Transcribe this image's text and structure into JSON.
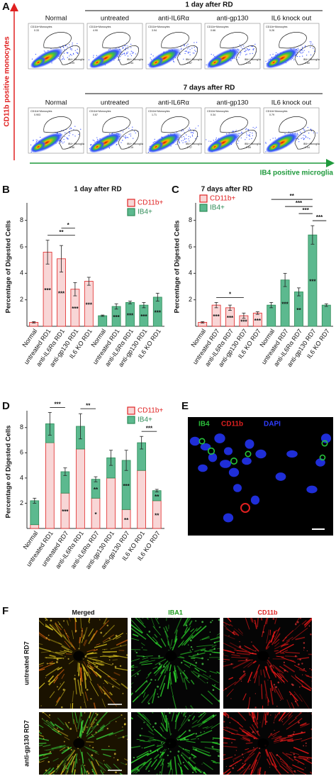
{
  "panel_a": {
    "letter": "A",
    "y_axis_label": "CD11b positive monocytes",
    "x_axis_label": "IB4 positive microglia",
    "gate_labels": [
      "CD11b+Monocytes",
      "IB4+ Microglia"
    ],
    "rows": [
      {
        "title": "1 day after RD",
        "labels": [
          "Normal",
          "untreated",
          "anti-IL6Rα",
          "anti-gp130",
          "IL6 knock out"
        ],
        "upper": [
          "0.33",
          "4.90",
          "3.94",
          "0.66",
          "5.26"
        ],
        "lower": [
          "1.29",
          "1.44",
          "1.67",
          "1.20",
          "1.60"
        ]
      },
      {
        "title": "7 days after RD",
        "labels": [
          "Normal",
          "untreated",
          "anti-IL6Rα",
          "anti-gp130",
          "IL6 knock out"
        ],
        "upper": [
          "0.903",
          "0.87",
          "1.71",
          "0.34",
          "0.79"
        ],
        "lower": [
          "0.66",
          "1.19",
          "2.17",
          "0.89",
          "1.04"
        ]
      }
    ]
  },
  "chart_data": [
    {
      "letter": "B",
      "type": "bar",
      "title": "1 day after RD",
      "ylabel": "Percentage of Digested Cells",
      "categories": [
        "Normal",
        "untreated RD1",
        "anti-IL6Rα RD1",
        "anti-gp130 RD1",
        "IL6 KO RD1",
        "Normal",
        "untreated RD1",
        "anti-IL6Rα RD1",
        "anti-gp130 RD1",
        "IL6 KO RD1"
      ],
      "series": [
        {
          "name": "CD11b+",
          "color": "#f8d6d6",
          "edge": "#e02424",
          "values": [
            0.3,
            5.6,
            5.1,
            2.8,
            3.4,
            null,
            null,
            null,
            null,
            null
          ],
          "errors": [
            0.05,
            0.9,
            1.0,
            0.5,
            0.3,
            null,
            null,
            null,
            null,
            null
          ],
          "labels": [
            null,
            "***",
            "***",
            "***",
            "***",
            null,
            null,
            null,
            null,
            null
          ]
        },
        {
          "name": "IB4+",
          "color": "#5cb98f",
          "edge": "#2e8b57",
          "values": [
            null,
            null,
            null,
            null,
            null,
            0.8,
            1.5,
            1.8,
            1.6,
            2.2
          ],
          "errors": [
            null,
            null,
            null,
            null,
            null,
            0.05,
            0.2,
            0.1,
            0.2,
            0.3
          ],
          "labels": [
            null,
            null,
            null,
            null,
            null,
            null,
            "***",
            "***",
            "***",
            "***"
          ]
        }
      ],
      "ylim": [
        0,
        9
      ],
      "yticks": [
        2,
        4,
        6,
        8
      ],
      "legend": "upper right",
      "brackets": [
        {
          "from": 1,
          "to": 3,
          "label": "**"
        },
        {
          "from": 2,
          "to": 3,
          "label": "*"
        }
      ]
    },
    {
      "letter": "C",
      "type": "bar",
      "title": "7 days after RD",
      "ylabel": "Percentage of Digested Cells",
      "categories": [
        "Normal",
        "untreated RD7",
        "anti-IL6Rα RD7",
        "anti-gp130 RD7",
        "IL6 KO RD7",
        "Normal",
        "untreated RD7",
        "anti-IL6Rα RD7",
        "anti-gp130 RD7",
        "IL6 KO RD7"
      ],
      "series": [
        {
          "name": "CD11b+",
          "color": "#f8d6d6",
          "edge": "#e02424",
          "values": [
            0.3,
            1.6,
            1.4,
            0.8,
            1.0,
            null,
            null,
            null,
            null,
            null
          ],
          "errors": [
            0.05,
            0.2,
            0.2,
            0.2,
            0.1,
            null,
            null,
            null,
            null,
            null
          ],
          "labels": [
            null,
            "***",
            "***",
            "***",
            "***",
            null,
            null,
            null,
            null,
            null
          ]
        },
        {
          "name": "IB4+",
          "color": "#5cb98f",
          "edge": "#2e8b57",
          "values": [
            null,
            null,
            null,
            null,
            null,
            1.6,
            3.5,
            2.6,
            6.9,
            1.6
          ],
          "errors": [
            null,
            null,
            null,
            null,
            null,
            0.2,
            0.5,
            0.3,
            0.7,
            0.1
          ],
          "labels": [
            null,
            null,
            null,
            null,
            null,
            null,
            "***",
            "**",
            "***",
            null
          ]
        }
      ],
      "ylim": [
        0,
        9
      ],
      "yticks": [
        2,
        4,
        6,
        8
      ],
      "legend": "upper left",
      "brackets": [
        {
          "from": 1,
          "to": 3,
          "label": "*"
        },
        {
          "from": 8,
          "to": 9,
          "label": "***"
        },
        {
          "from": 7,
          "to": 8,
          "label": "***"
        },
        {
          "from": 6,
          "to": 8,
          "label": "***"
        },
        {
          "from": 5,
          "to": 8,
          "label": "**"
        }
      ]
    },
    {
      "letter": "D",
      "type": "stacked_bar",
      "ylabel": "Percentage of Digested Cells",
      "categories": [
        "Normal",
        "untreated RD1",
        "untreated RD7",
        "anti-IL6Rα RD1",
        "anti-IL6Rα RD7",
        "anti-gp130 RD1",
        "anti-gp130 RD7",
        "IL6 KO RD1",
        "IL6 KO RD7"
      ],
      "series": [
        {
          "name": "CD11b+",
          "color": "#f8d6d6",
          "edge": "#e02424",
          "values": [
            0.3,
            6.8,
            2.8,
            6.3,
            2.4,
            4.0,
            1.5,
            4.6,
            2.2
          ],
          "labels": [
            null,
            null,
            "***",
            null,
            "*",
            null,
            "**",
            null,
            "**"
          ]
        },
        {
          "name": "IB4+",
          "color": "#5cb98f",
          "edge": "#2e8b57",
          "values": [
            1.9,
            1.5,
            1.7,
            1.8,
            1.5,
            1.6,
            3.9,
            2.2,
            0.8
          ],
          "errors": [
            0.2,
            0.9,
            0.3,
            1.0,
            0.2,
            0.6,
            0.8,
            0.5,
            0.1
          ],
          "labels": [
            null,
            null,
            null,
            null,
            "**",
            null,
            "***",
            null,
            "**"
          ]
        }
      ],
      "ylim": [
        0,
        9
      ],
      "yticks": [
        2,
        4,
        6,
        8
      ],
      "legend": "upper right",
      "brackets": [
        {
          "from": 1,
          "to": 2,
          "label": "***"
        },
        {
          "from": 3,
          "to": 4,
          "label": "**"
        },
        {
          "from": 7,
          "to": 8,
          "label": "***"
        }
      ]
    }
  ],
  "panel_e": {
    "letter": "E",
    "channels": [
      {
        "name": "IB4",
        "color": "#2bbf3a"
      },
      {
        "name": "CD11b",
        "color": "#e02020"
      },
      {
        "name": "DAPI",
        "color": "#2f3cff"
      }
    ]
  },
  "panel_f": {
    "letter": "F",
    "columns": [
      "Merged",
      "IBA1",
      "CD11b"
    ],
    "rows": [
      "untreated RD7",
      "anti-gp130 RD7"
    ]
  }
}
